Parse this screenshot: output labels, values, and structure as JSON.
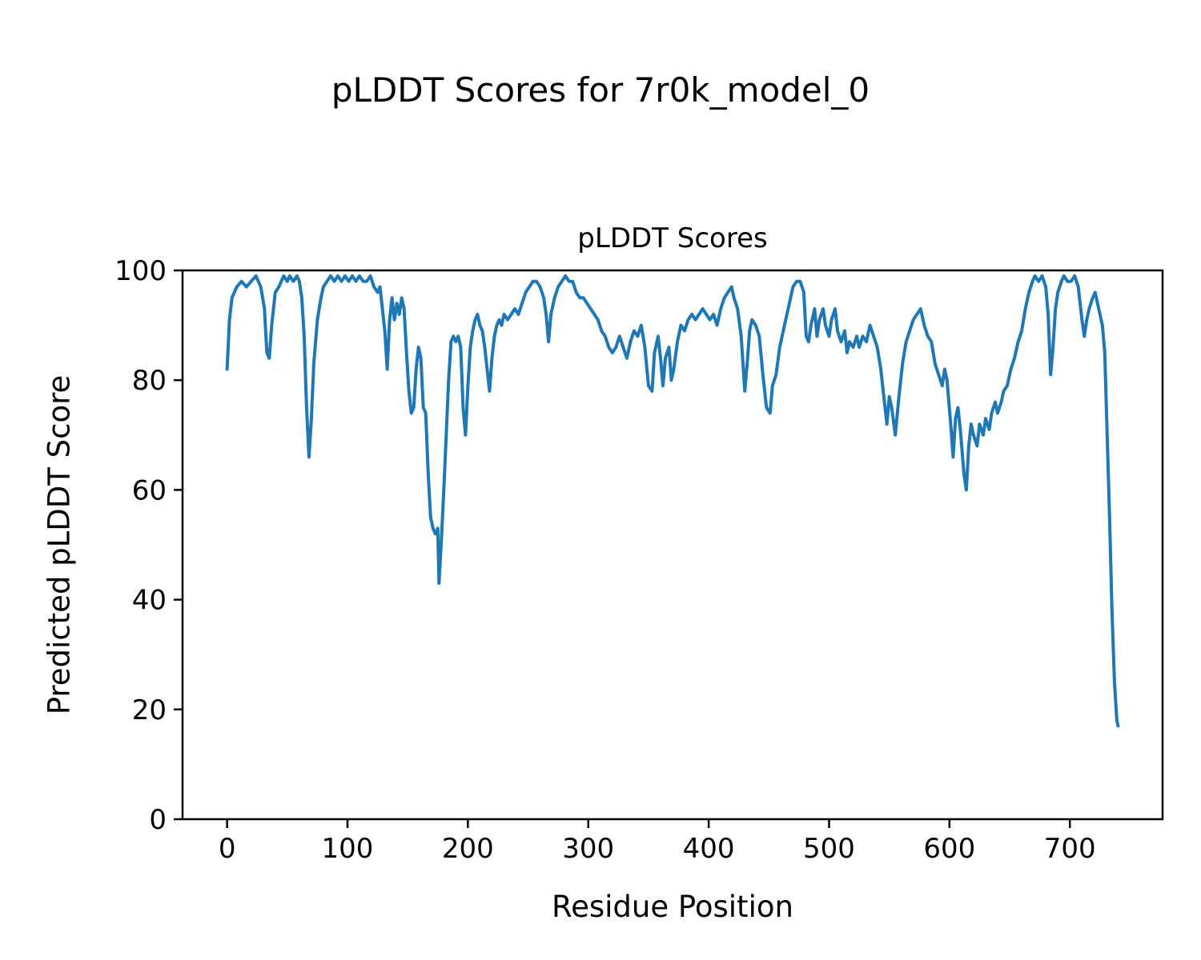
{
  "chart_data": {
    "type": "line",
    "figure_title": "pLDDT Scores for 7r0k_model_0",
    "title": "pLDDT Scores",
    "xlabel": "Residue Position",
    "ylabel": "Predicted pLDDT Score",
    "xlim": [
      -37,
      777
    ],
    "ylim": [
      0,
      100
    ],
    "xticks": [
      0,
      100,
      200,
      300,
      400,
      500,
      600,
      700
    ],
    "yticks": [
      0,
      20,
      40,
      60,
      80,
      100
    ],
    "grid": false,
    "legend": "none",
    "line_color": "#1f77b4",
    "line_width": 4,
    "series": [
      {
        "name": "pLDDT",
        "points": [
          [
            0,
            82
          ],
          [
            2,
            91
          ],
          [
            4,
            95
          ],
          [
            6,
            96
          ],
          [
            8,
            97
          ],
          [
            12,
            98
          ],
          [
            16,
            97
          ],
          [
            20,
            98
          ],
          [
            24,
            99
          ],
          [
            28,
            97
          ],
          [
            31,
            93
          ],
          [
            33,
            85
          ],
          [
            35,
            84
          ],
          [
            37,
            90
          ],
          [
            40,
            96
          ],
          [
            43,
            97
          ],
          [
            45,
            98
          ],
          [
            47,
            99
          ],
          [
            50,
            98
          ],
          [
            52,
            99
          ],
          [
            55,
            98
          ],
          [
            58,
            99
          ],
          [
            60,
            98
          ],
          [
            62,
            95
          ],
          [
            64,
            88
          ],
          [
            66,
            75
          ],
          [
            68,
            66
          ],
          [
            70,
            73
          ],
          [
            72,
            83
          ],
          [
            75,
            91
          ],
          [
            78,
            95
          ],
          [
            80,
            97
          ],
          [
            83,
            98
          ],
          [
            86,
            99
          ],
          [
            89,
            98
          ],
          [
            92,
            99
          ],
          [
            95,
            98
          ],
          [
            98,
            99
          ],
          [
            101,
            98
          ],
          [
            104,
            99
          ],
          [
            107,
            98
          ],
          [
            110,
            99
          ],
          [
            113,
            98
          ],
          [
            116,
            98
          ],
          [
            119,
            99
          ],
          [
            122,
            97
          ],
          [
            125,
            96
          ],
          [
            127,
            97
          ],
          [
            129,
            93
          ],
          [
            131,
            89
          ],
          [
            133,
            82
          ],
          [
            135,
            91
          ],
          [
            137,
            95
          ],
          [
            139,
            91
          ],
          [
            141,
            94
          ],
          [
            143,
            92
          ],
          [
            145,
            95
          ],
          [
            147,
            93
          ],
          [
            149,
            85
          ],
          [
            151,
            78
          ],
          [
            153,
            74
          ],
          [
            155,
            75
          ],
          [
            157,
            82
          ],
          [
            159,
            86
          ],
          [
            161,
            84
          ],
          [
            163,
            75
          ],
          [
            165,
            74
          ],
          [
            167,
            63
          ],
          [
            169,
            55
          ],
          [
            171,
            53
          ],
          [
            173,
            52
          ],
          [
            175,
            53
          ],
          [
            176,
            43
          ],
          [
            178,
            51
          ],
          [
            180,
            60
          ],
          [
            182,
            70
          ],
          [
            184,
            80
          ],
          [
            186,
            87
          ],
          [
            188,
            88
          ],
          [
            190,
            87
          ],
          [
            192,
            88
          ],
          [
            194,
            86
          ],
          [
            196,
            75
          ],
          [
            198,
            70
          ],
          [
            200,
            79
          ],
          [
            202,
            86
          ],
          [
            204,
            89
          ],
          [
            206,
            91
          ],
          [
            208,
            92
          ],
          [
            210,
            90
          ],
          [
            212,
            89
          ],
          [
            214,
            86
          ],
          [
            216,
            82
          ],
          [
            218,
            78
          ],
          [
            220,
            84
          ],
          [
            222,
            88
          ],
          [
            224,
            90
          ],
          [
            226,
            91
          ],
          [
            228,
            90
          ],
          [
            230,
            92
          ],
          [
            233,
            91
          ],
          [
            236,
            92
          ],
          [
            239,
            93
          ],
          [
            242,
            92
          ],
          [
            245,
            94
          ],
          [
            248,
            96
          ],
          [
            251,
            97
          ],
          [
            254,
            98
          ],
          [
            257,
            98
          ],
          [
            260,
            97
          ],
          [
            263,
            95
          ],
          [
            265,
            92
          ],
          [
            267,
            87
          ],
          [
            269,
            92
          ],
          [
            272,
            95
          ],
          [
            275,
            97
          ],
          [
            278,
            98
          ],
          [
            281,
            99
          ],
          [
            284,
            98
          ],
          [
            287,
            98
          ],
          [
            290,
            96
          ],
          [
            293,
            95
          ],
          [
            296,
            95
          ],
          [
            299,
            94
          ],
          [
            302,
            93
          ],
          [
            305,
            92
          ],
          [
            308,
            91
          ],
          [
            311,
            89
          ],
          [
            314,
            88
          ],
          [
            317,
            86
          ],
          [
            320,
            85
          ],
          [
            323,
            86
          ],
          [
            326,
            88
          ],
          [
            329,
            86
          ],
          [
            332,
            84
          ],
          [
            335,
            87
          ],
          [
            338,
            89
          ],
          [
            341,
            88
          ],
          [
            344,
            90
          ],
          [
            347,
            86
          ],
          [
            350,
            79
          ],
          [
            353,
            78
          ],
          [
            355,
            85
          ],
          [
            358,
            88
          ],
          [
            360,
            84
          ],
          [
            362,
            79
          ],
          [
            364,
            84
          ],
          [
            367,
            86
          ],
          [
            369,
            80
          ],
          [
            371,
            82
          ],
          [
            374,
            87
          ],
          [
            377,
            90
          ],
          [
            380,
            89
          ],
          [
            383,
            91
          ],
          [
            386,
            92
          ],
          [
            389,
            91
          ],
          [
            392,
            92
          ],
          [
            395,
            93
          ],
          [
            398,
            92
          ],
          [
            401,
            91
          ],
          [
            404,
            92
          ],
          [
            407,
            90
          ],
          [
            410,
            93
          ],
          [
            413,
            95
          ],
          [
            416,
            96
          ],
          [
            419,
            97
          ],
          [
            421,
            95
          ],
          [
            424,
            93
          ],
          [
            427,
            88
          ],
          [
            430,
            78
          ],
          [
            432,
            83
          ],
          [
            434,
            89
          ],
          [
            436,
            91
          ],
          [
            439,
            90
          ],
          [
            442,
            88
          ],
          [
            445,
            81
          ],
          [
            448,
            75
          ],
          [
            451,
            74
          ],
          [
            453,
            79
          ],
          [
            456,
            81
          ],
          [
            459,
            86
          ],
          [
            462,
            89
          ],
          [
            464,
            91
          ],
          [
            467,
            94
          ],
          [
            470,
            97
          ],
          [
            473,
            98
          ],
          [
            476,
            98
          ],
          [
            479,
            96
          ],
          [
            481,
            88
          ],
          [
            483,
            87
          ],
          [
            485,
            90
          ],
          [
            488,
            93
          ],
          [
            490,
            88
          ],
          [
            492,
            91
          ],
          [
            495,
            93
          ],
          [
            497,
            90
          ],
          [
            500,
            88
          ],
          [
            502,
            91
          ],
          [
            505,
            93
          ],
          [
            507,
            89
          ],
          [
            510,
            87
          ],
          [
            513,
            89
          ],
          [
            515,
            85
          ],
          [
            517,
            87
          ],
          [
            520,
            86
          ],
          [
            523,
            88
          ],
          [
            525,
            86
          ],
          [
            528,
            88
          ],
          [
            531,
            87
          ],
          [
            534,
            90
          ],
          [
            537,
            88
          ],
          [
            540,
            86
          ],
          [
            543,
            82
          ],
          [
            545,
            78
          ],
          [
            548,
            72
          ],
          [
            550,
            77
          ],
          [
            552,
            75
          ],
          [
            555,
            70
          ],
          [
            558,
            77
          ],
          [
            561,
            83
          ],
          [
            564,
            87
          ],
          [
            567,
            89
          ],
          [
            570,
            91
          ],
          [
            573,
            92
          ],
          [
            576,
            93
          ],
          [
            579,
            90
          ],
          [
            582,
            88
          ],
          [
            585,
            87
          ],
          [
            588,
            83
          ],
          [
            591,
            81
          ],
          [
            594,
            79
          ],
          [
            596,
            82
          ],
          [
            598,
            80
          ],
          [
            601,
            72
          ],
          [
            603,
            66
          ],
          [
            605,
            73
          ],
          [
            607,
            75
          ],
          [
            609,
            71
          ],
          [
            612,
            63
          ],
          [
            614,
            60
          ],
          [
            616,
            68
          ],
          [
            618,
            72
          ],
          [
            620,
            70
          ],
          [
            623,
            68
          ],
          [
            625,
            72
          ],
          [
            628,
            70
          ],
          [
            630,
            73
          ],
          [
            633,
            71
          ],
          [
            635,
            74
          ],
          [
            638,
            76
          ],
          [
            640,
            74
          ],
          [
            643,
            76
          ],
          [
            645,
            78
          ],
          [
            648,
            79
          ],
          [
            651,
            82
          ],
          [
            654,
            84
          ],
          [
            657,
            87
          ],
          [
            660,
            89
          ],
          [
            663,
            93
          ],
          [
            666,
            96
          ],
          [
            669,
            98
          ],
          [
            671,
            99
          ],
          [
            674,
            98
          ],
          [
            677,
            99
          ],
          [
            680,
            97
          ],
          [
            682,
            92
          ],
          [
            684,
            81
          ],
          [
            686,
            86
          ],
          [
            688,
            93
          ],
          [
            690,
            96
          ],
          [
            693,
            98
          ],
          [
            695,
            99
          ],
          [
            698,
            98
          ],
          [
            701,
            98
          ],
          [
            704,
            99
          ],
          [
            707,
            97
          ],
          [
            710,
            91
          ],
          [
            712,
            88
          ],
          [
            714,
            91
          ],
          [
            716,
            93
          ],
          [
            719,
            95
          ],
          [
            721,
            96
          ],
          [
            723,
            94
          ],
          [
            725,
            92
          ],
          [
            727,
            90
          ],
          [
            729,
            85
          ],
          [
            731,
            70
          ],
          [
            733,
            55
          ],
          [
            735,
            38
          ],
          [
            737,
            25
          ],
          [
            739,
            18
          ],
          [
            740,
            17
          ]
        ]
      }
    ]
  }
}
